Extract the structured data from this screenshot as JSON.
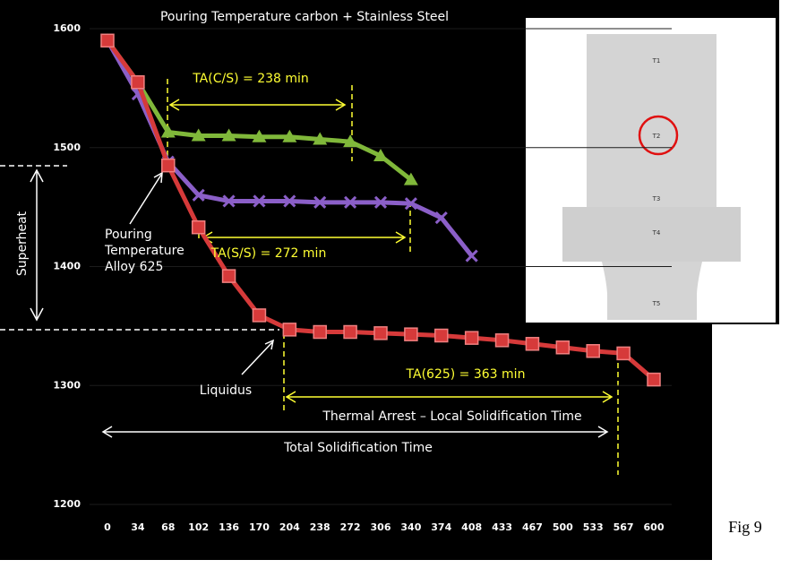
{
  "chart_data": {
    "type": "line",
    "title": "Pouring Temperature carbon + Stainless Steel",
    "categories": [
      "0",
      "34",
      "68",
      "102",
      "136",
      "170",
      "204",
      "238",
      "272",
      "306",
      "340",
      "374",
      "408",
      "433",
      "467",
      "500",
      "533",
      "567",
      "600"
    ],
    "ylim": [
      1200,
      1600
    ],
    "yticks": [
      1200,
      1300,
      1400,
      1500,
      1600
    ],
    "grid": true,
    "series": [
      {
        "color": "#80b83a",
        "marker": "triangle",
        "values": [
          1590,
          1555,
          1513,
          1510,
          1510,
          1509,
          1509,
          1507,
          1505,
          1493,
          1473,
          null,
          null,
          null,
          null,
          null,
          null,
          null,
          null
        ]
      },
      {
        "color": "#8b5fc8",
        "marker": "x",
        "values": [
          1590,
          1545,
          1488,
          1460,
          1455,
          1455,
          1455,
          1454,
          1454,
          1454,
          1453,
          1441,
          1409,
          null,
          null,
          null,
          null,
          null,
          null
        ]
      },
      {
        "color": "#d63a3a",
        "marker": "square",
        "values": [
          1590,
          1555,
          1485,
          1433,
          1392,
          1359,
          1347,
          1345,
          1345,
          1344,
          1343,
          1342,
          1340,
          1338,
          1335,
          1332,
          1329,
          1327,
          1305
        ]
      }
    ],
    "annotations": [
      "TA(C/S) = 238 min",
      "TA(S/S) = 272 min",
      "TA(625) = 363 min",
      "Thermal Arrest – Local Solidification Time",
      "Total Solidification Time",
      "Liquidus",
      "Superheat"
    ],
    "pouring_label": [
      "Pouring",
      "Temperature",
      "Alloy 625"
    ],
    "inset_labels": [
      "T1",
      "T2",
      "T3",
      "T4",
      "T5"
    ],
    "figure_label": "Fig 9"
  }
}
